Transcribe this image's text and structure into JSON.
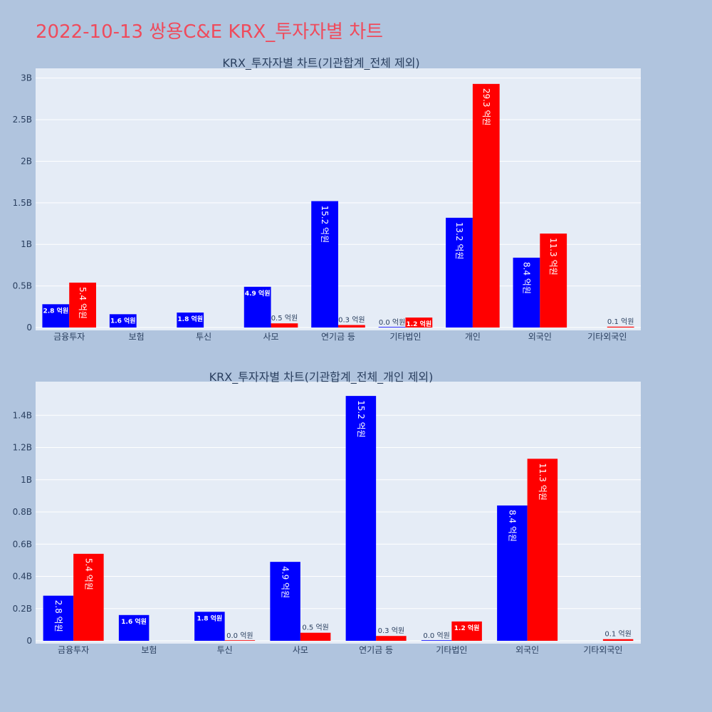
{
  "page": {
    "title": "2022-10-13 쌍용C&E KRX_투자자별 차트"
  },
  "colors": {
    "series_a": "#0000ff",
    "series_b": "#ff0000",
    "title": "#ef4b5c",
    "background": "#b0c4de",
    "plot_background": "#e5ecf6",
    "text": "#2a3f5f"
  },
  "chart_data": [
    {
      "type": "bar",
      "title": "KRX_투자자별 차트(기관합계_전체 제외)",
      "categories": [
        "금융투자",
        "보험",
        "투신",
        "사모",
        "연기금 등",
        "기타법인",
        "개인",
        "외국인",
        "기타외국인"
      ],
      "ylim": [
        0,
        3.1
      ],
      "yticks": [
        0,
        0.5,
        1,
        1.5,
        2,
        2.5,
        3
      ],
      "ytick_labels": [
        "0",
        "0.5B",
        "1B",
        "1.5B",
        "2B",
        "2.5B",
        "3B"
      ],
      "grid": true,
      "series": [
        {
          "values": [
            0.28,
            0.16,
            0.18,
            0.49,
            1.52,
            0.0,
            1.32,
            0.84,
            null
          ],
          "labels": [
            "2.8 억원",
            "1.6 억원",
            "1.8 억원",
            "4.9 억원",
            "15.2 억원",
            "0.0 억원",
            "13.2 억원",
            "8.4 억원",
            ""
          ]
        },
        {
          "values": [
            0.54,
            null,
            null,
            0.05,
            0.03,
            0.12,
            2.93,
            1.13,
            0.01
          ],
          "labels": [
            "5.4 억원",
            "",
            "",
            "0.5 억원",
            "0.3 억원",
            "1.2 억원",
            "29.3 억원",
            "11.3 억원",
            "0.1 억원"
          ]
        }
      ]
    },
    {
      "type": "bar",
      "title": "KRX_투자자별 차트(기관합계_전체_개인 제외)",
      "categories": [
        "금융투자",
        "보험",
        "투신",
        "사모",
        "연기금 등",
        "기타법인",
        "외국인",
        "기타외국인"
      ],
      "ylim": [
        0,
        1.6
      ],
      "yticks": [
        0,
        0.2,
        0.4,
        0.6,
        0.8,
        1,
        1.2,
        1.4
      ],
      "ytick_labels": [
        "0",
        "0.2B",
        "0.4B",
        "0.6B",
        "0.8B",
        "1B",
        "1.2B",
        "1.4B"
      ],
      "grid": true,
      "series": [
        {
          "values": [
            0.28,
            0.16,
            0.18,
            0.49,
            1.52,
            0.0,
            0.84,
            null
          ],
          "labels": [
            "2.8 억원",
            "1.6 억원",
            "1.8 억원",
            "4.9 억원",
            "15.2 억원",
            "0.0 억원",
            "8.4 억원",
            ""
          ]
        },
        {
          "values": [
            0.54,
            null,
            0.0,
            0.05,
            0.03,
            0.12,
            1.13,
            0.01
          ],
          "labels": [
            "5.4 억원",
            "",
            "0.0 억원",
            "0.5 억원",
            "0.3 억원",
            "1.2 억원",
            "11.3 억원",
            "0.1 억원"
          ]
        }
      ]
    }
  ]
}
